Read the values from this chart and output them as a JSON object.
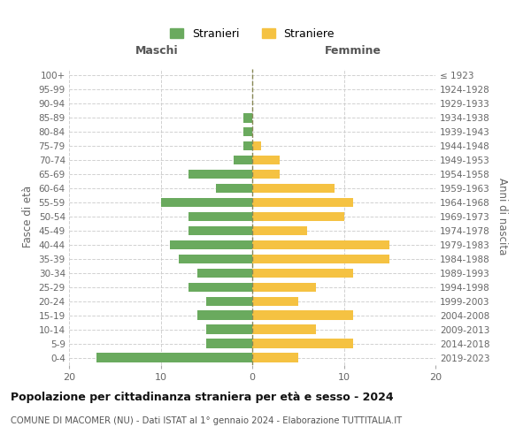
{
  "age_groups": [
    "0-4",
    "5-9",
    "10-14",
    "15-19",
    "20-24",
    "25-29",
    "30-34",
    "35-39",
    "40-44",
    "45-49",
    "50-54",
    "55-59",
    "60-64",
    "65-69",
    "70-74",
    "75-79",
    "80-84",
    "85-89",
    "90-94",
    "95-99",
    "100+"
  ],
  "birth_years": [
    "2019-2023",
    "2014-2018",
    "2009-2013",
    "2004-2008",
    "1999-2003",
    "1994-1998",
    "1989-1993",
    "1984-1988",
    "1979-1983",
    "1974-1978",
    "1969-1973",
    "1964-1968",
    "1959-1963",
    "1954-1958",
    "1949-1953",
    "1944-1948",
    "1939-1943",
    "1934-1938",
    "1929-1933",
    "1924-1928",
    "≤ 1923"
  ],
  "males": [
    17,
    5,
    5,
    6,
    5,
    7,
    6,
    8,
    9,
    7,
    7,
    10,
    4,
    7,
    2,
    1,
    1,
    1,
    0,
    0,
    0
  ],
  "females": [
    5,
    11,
    7,
    11,
    5,
    7,
    11,
    15,
    15,
    6,
    10,
    11,
    9,
    3,
    3,
    1,
    0,
    0,
    0,
    0,
    0
  ],
  "male_color": "#6aaa5e",
  "female_color": "#f5c242",
  "background_color": "#ffffff",
  "grid_color": "#cccccc",
  "title": "Popolazione per cittadinanza straniera per età e sesso - 2024",
  "subtitle": "COMUNE DI MACOMER (NU) - Dati ISTAT al 1° gennaio 2024 - Elaborazione TUTTITALIA.IT",
  "xlabel_left": "Maschi",
  "xlabel_right": "Femmine",
  "ylabel_left": "Fasce di età",
  "ylabel_right": "Anni di nascita",
  "xlim": 20,
  "legend_male": "Stranieri",
  "legend_female": "Straniere"
}
